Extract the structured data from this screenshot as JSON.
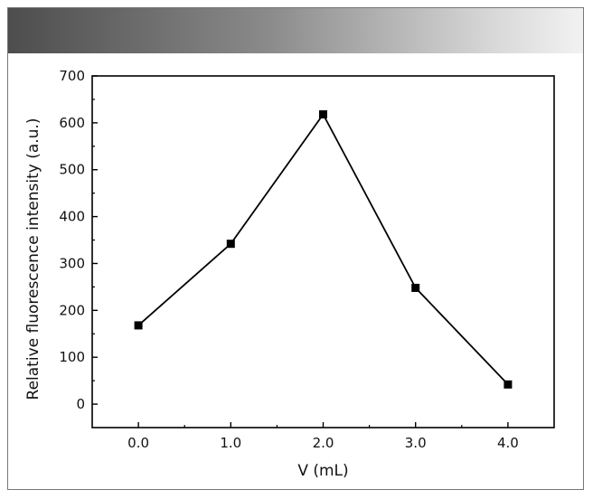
{
  "chart_data": {
    "type": "line",
    "title": "",
    "xlabel": "V (mL)",
    "ylabel": "Relative fluorescence intensity (a.u.)",
    "x": [
      "0.0",
      "1.0",
      "2.0",
      "3.0",
      "4.0"
    ],
    "series": [
      {
        "name": "",
        "values": [
          168,
          342,
          618,
          248,
          42
        ],
        "marker": "square",
        "color": "#000000"
      }
    ],
    "xlim": [
      -0.5,
      4.5
    ],
    "ylim": [
      -50,
      700
    ],
    "y_ticks": [
      0,
      100,
      200,
      300,
      400,
      500,
      600,
      700
    ],
    "grid": false,
    "legend": "none"
  }
}
